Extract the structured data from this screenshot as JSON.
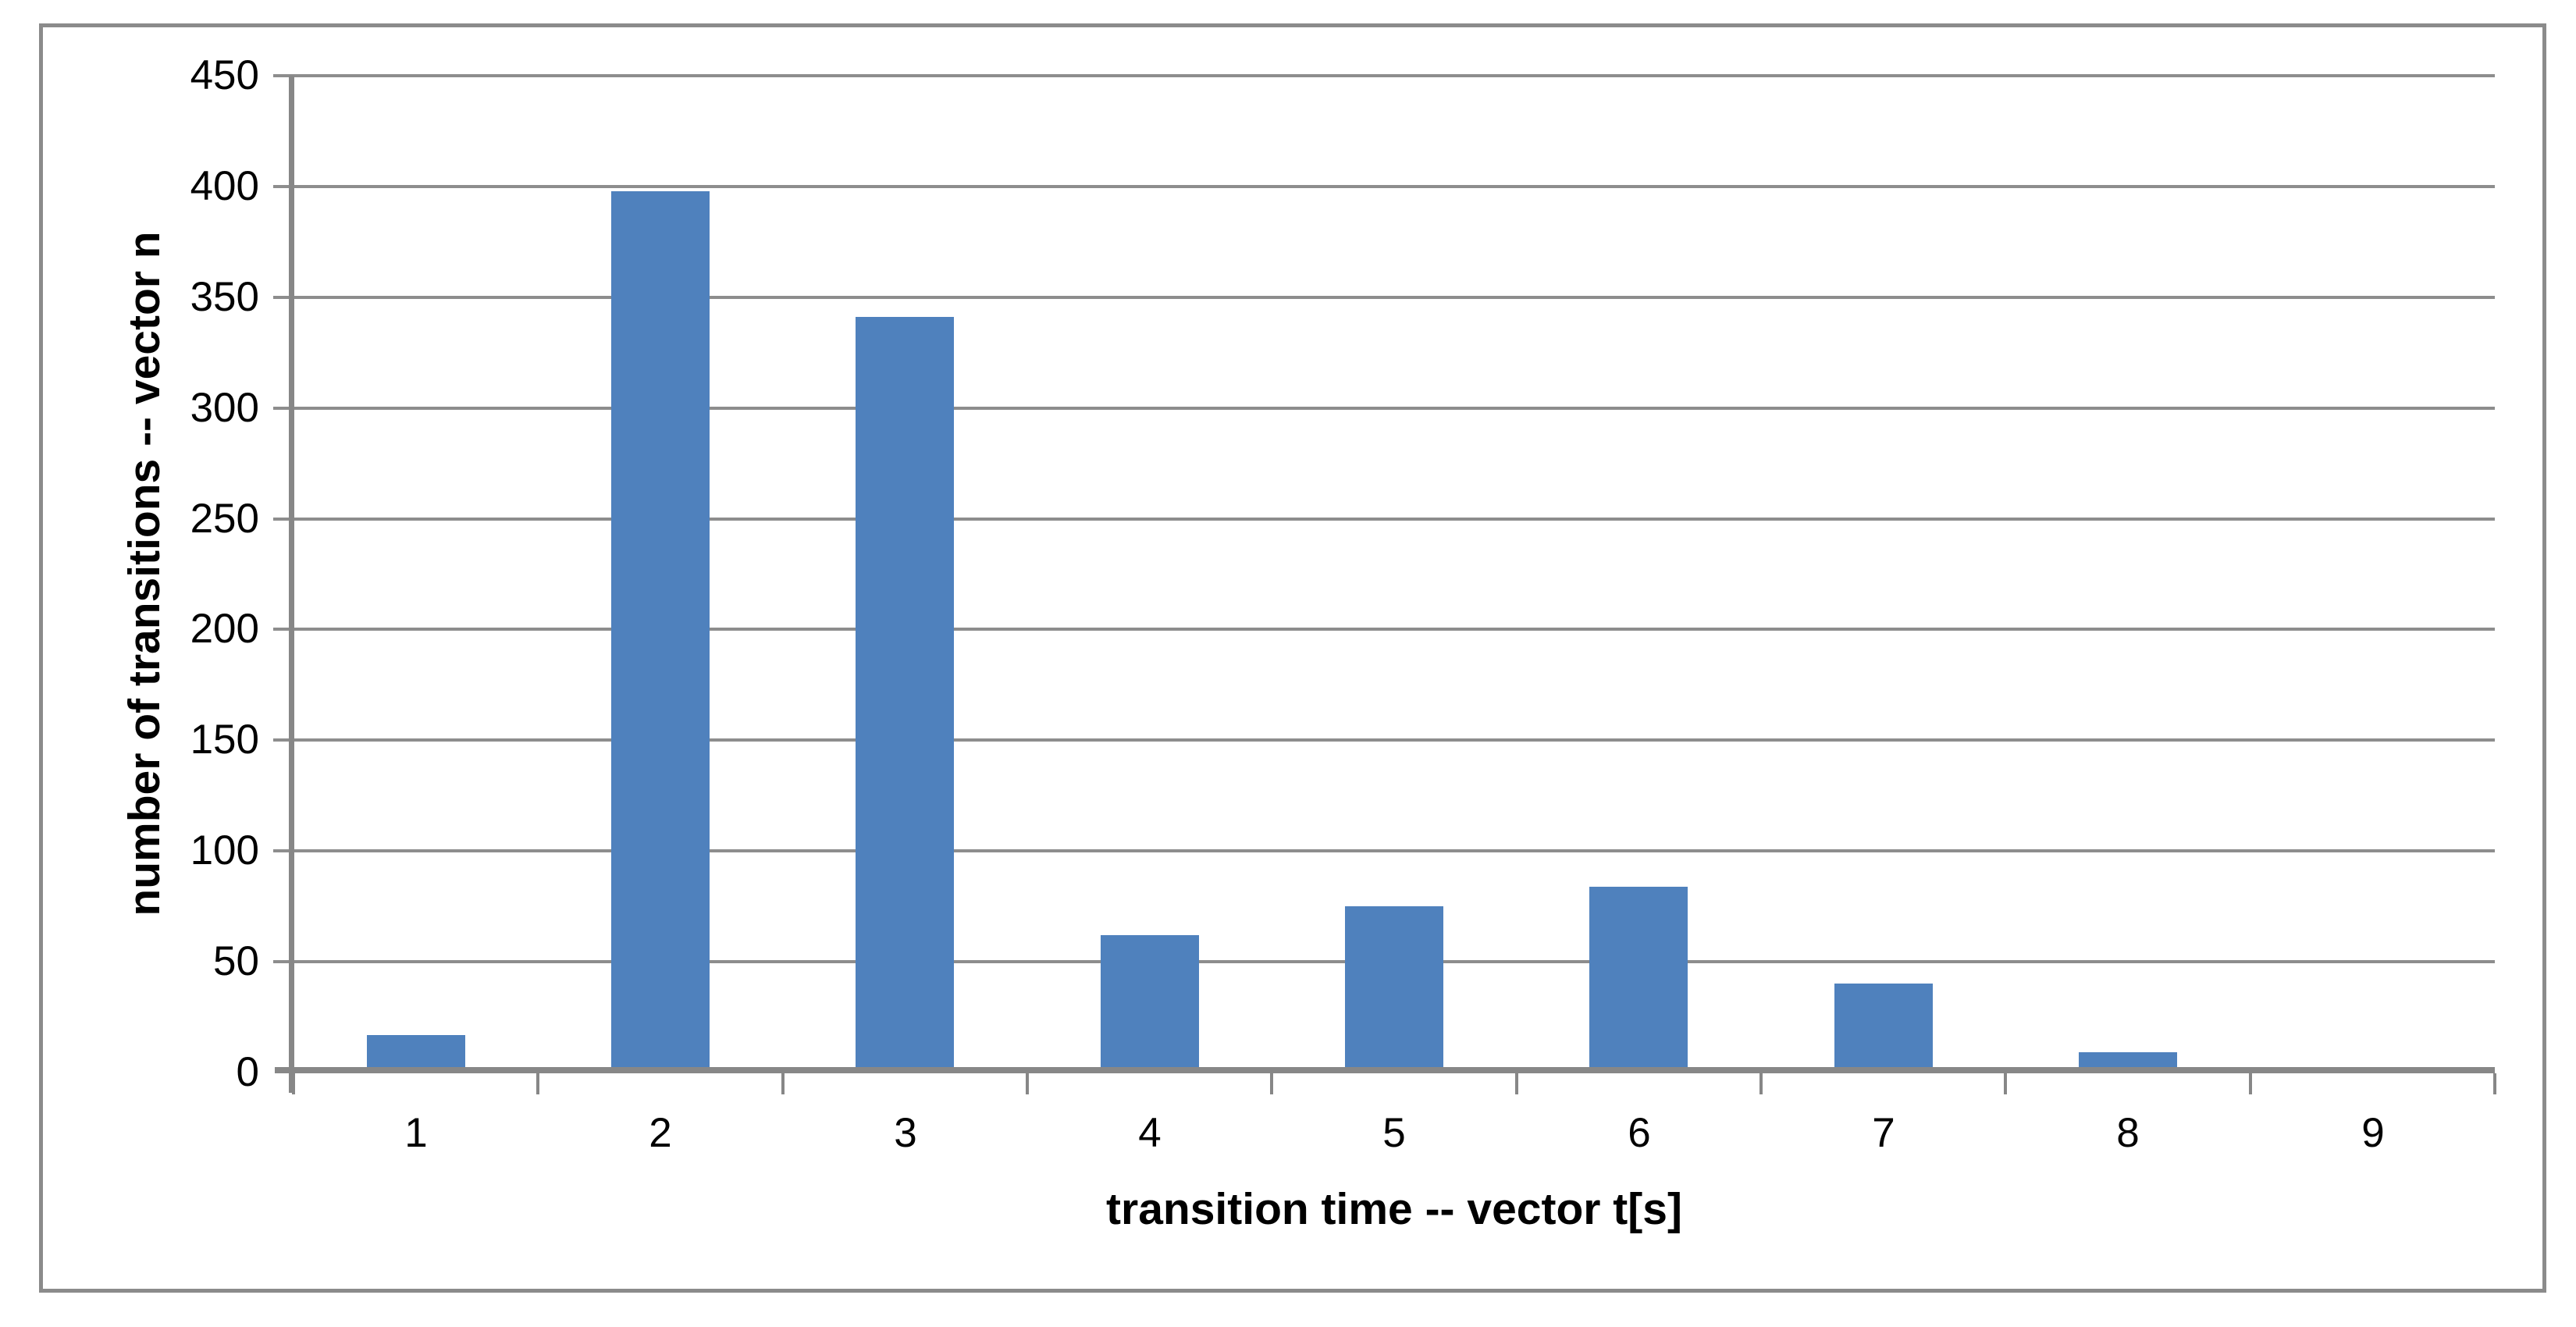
{
  "chart_data": {
    "type": "bar",
    "title": "",
    "categories": [
      "1",
      "2",
      "3",
      "4",
      "5",
      "6",
      "7",
      "8",
      "9"
    ],
    "values": [
      17,
      398,
      341,
      62,
      75,
      84,
      40,
      9,
      2
    ],
    "xlabel": "transition time -- vector t[s]",
    "ylabel": "number of transitions -- vector n",
    "ylim": [
      0,
      450
    ],
    "ytick_step": 50,
    "ytick_labels": [
      "0",
      "50",
      "100",
      "150",
      "200",
      "250",
      "300",
      "350",
      "400",
      "450"
    ],
    "grid": "horizontal",
    "legend": "none",
    "colors": {
      "bar": "#4f81bd",
      "gridline": "#8d8d8d",
      "axis": "#878787",
      "border": "#8b8b8b",
      "background": "#ffffff",
      "text": "#000000"
    }
  }
}
